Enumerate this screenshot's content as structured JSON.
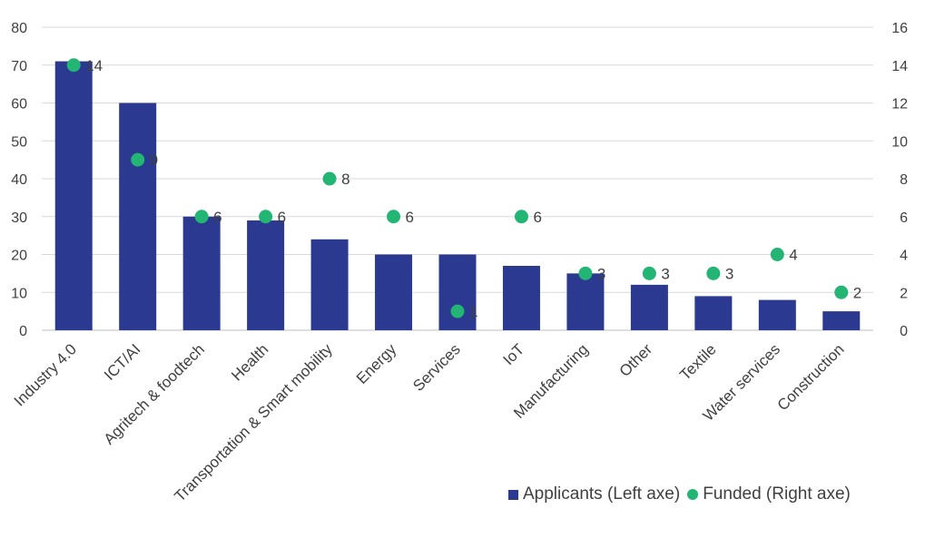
{
  "chart_data": {
    "type": "bar",
    "categories": [
      "Industry 4.0",
      "ICT/AI",
      "Agritech & foodtech",
      "Health",
      "Transportation & Smart mobility",
      "Energy",
      "Services",
      "IoT",
      "Manufacturing",
      "Other",
      "Textile",
      "Water services",
      "Construction"
    ],
    "series": [
      {
        "name": "Applicants (Left axe)",
        "type": "bar",
        "axis": "left",
        "color": "#2b3990",
        "values": [
          71,
          60,
          30,
          29,
          24,
          20,
          20,
          17,
          15,
          12,
          9,
          8,
          5
        ]
      },
      {
        "name": "Funded (Right axe)",
        "type": "scatter",
        "axis": "right",
        "color": "#22b573",
        "values": [
          14,
          9,
          6,
          6,
          8,
          6,
          1,
          6,
          3,
          3,
          3,
          4,
          2
        ]
      }
    ],
    "y_left": {
      "lim": [
        0,
        80
      ],
      "ticks": [
        "0",
        "10",
        "20",
        "30",
        "40",
        "50",
        "60",
        "70",
        "80"
      ]
    },
    "y_right": {
      "lim": [
        0,
        16
      ],
      "ticks": [
        "0",
        "2",
        "4",
        "6",
        "8",
        "10",
        "12",
        "14",
        "16"
      ]
    },
    "grid": true,
    "legend_position": "bottom-right",
    "title": "",
    "xlabel": "",
    "ylabel": ""
  }
}
